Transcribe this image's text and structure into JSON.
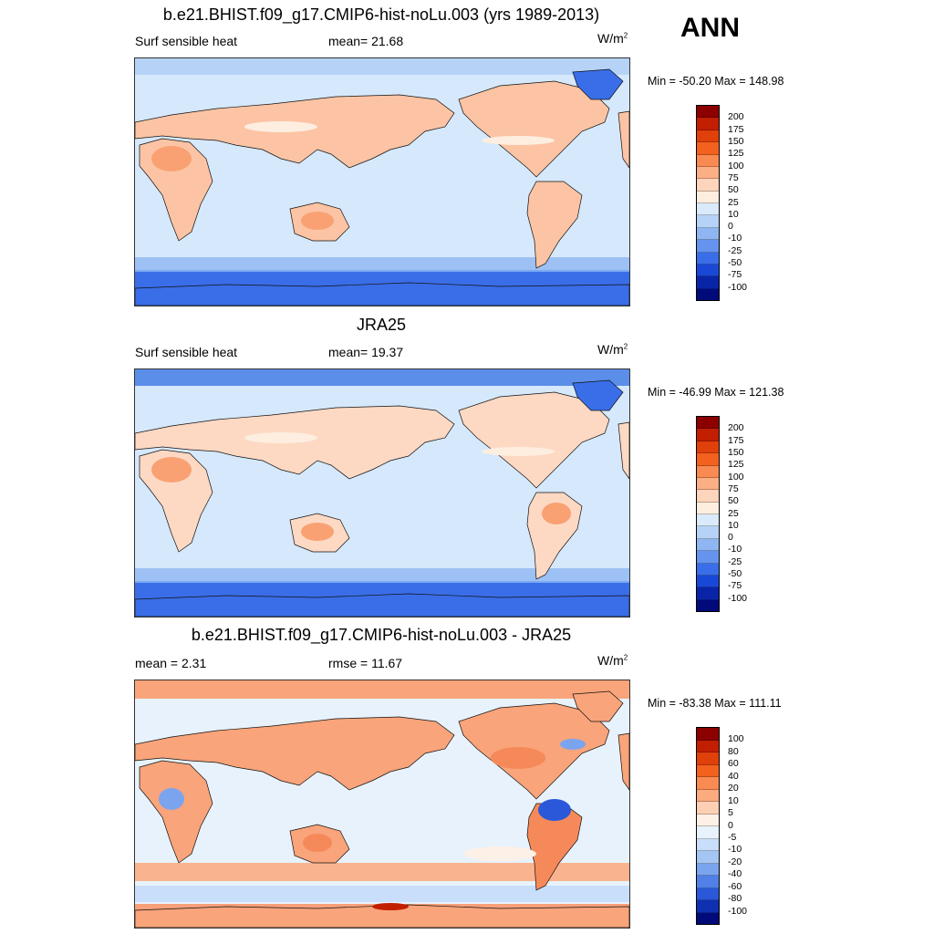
{
  "season": "ANN",
  "panels": [
    {
      "title": "b.e21.BHIST.f09_g17.CMIP6-hist-noLu.003 (yrs 1989-2013)",
      "left_label": "Surf sensible heat",
      "center_label": "mean=  21.68",
      "units": "W/m",
      "units_sup": "2",
      "minmax": "Min = -50.20 Max = 148.98",
      "colorbar_labels": [
        "200",
        "175",
        "150",
        "125",
        "100",
        "75",
        "50",
        "25",
        "10",
        "0",
        "-10",
        "-25",
        "-50",
        "-75",
        "-100"
      ],
      "colorbar_colors": [
        "#8c0000",
        "#c21e00",
        "#e0400a",
        "#f2621e",
        "#f98a52",
        "#fcaf85",
        "#fdd4bc",
        "#fdeee0",
        "#d9eafb",
        "#b6d3f7",
        "#8fb6f2",
        "#6494ee",
        "#3a6ee8",
        "#1a48d6",
        "#0a24a8",
        "#000a7a"
      ],
      "pattern": "model"
    },
    {
      "title": "JRA25",
      "left_label": "Surf sensible heat",
      "center_label": "mean=  19.37",
      "units": "W/m",
      "units_sup": "2",
      "minmax": "Min = -46.99 Max = 121.38",
      "colorbar_labels": [
        "200",
        "175",
        "150",
        "125",
        "100",
        "75",
        "50",
        "25",
        "10",
        "0",
        "-10",
        "-25",
        "-50",
        "-75",
        "-100"
      ],
      "colorbar_colors": [
        "#8c0000",
        "#c21e00",
        "#e0400a",
        "#f2621e",
        "#f98a52",
        "#fcaf85",
        "#fdd4bc",
        "#fdeee0",
        "#d9eafb",
        "#b6d3f7",
        "#8fb6f2",
        "#6494ee",
        "#3a6ee8",
        "#1a48d6",
        "#0a24a8",
        "#000a7a"
      ],
      "pattern": "obs"
    },
    {
      "title": "b.e21.BHIST.f09_g17.CMIP6-hist-noLu.003 - JRA25",
      "left_label": "mean =   2.31",
      "center_label": "rmse =  11.67",
      "units": "W/m",
      "units_sup": "2",
      "minmax": "Min = -83.38 Max = 111.11",
      "colorbar_labels": [
        "100",
        "80",
        "60",
        "40",
        "20",
        "10",
        "5",
        "0",
        "-5",
        "-10",
        "-20",
        "-40",
        "-60",
        "-80",
        "-100"
      ],
      "colorbar_colors": [
        "#8c0000",
        "#c21e00",
        "#e0400a",
        "#f2621e",
        "#f98a52",
        "#fbab7e",
        "#fdd0b4",
        "#fdf0e6",
        "#e8f2fc",
        "#c9defa",
        "#a5c5f5",
        "#7ba4ef",
        "#5080e8",
        "#2a58d8",
        "#0f30b0",
        "#000a7a"
      ],
      "pattern": "diff"
    }
  ]
}
